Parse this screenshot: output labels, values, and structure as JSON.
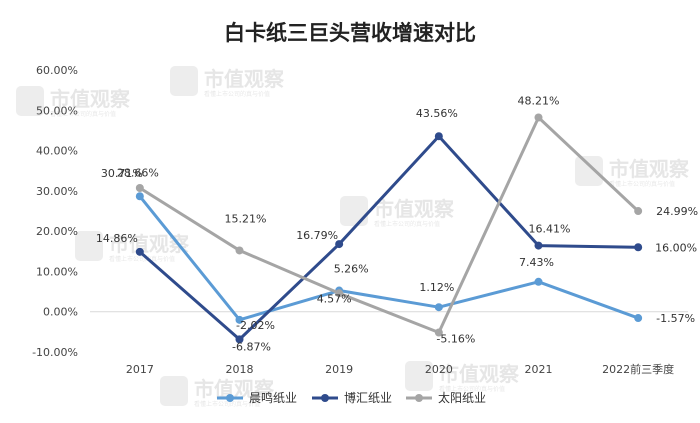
{
  "watermark": {
    "text": "市值观察",
    "subtext": "看懂上市公司的真与价值"
  },
  "chart_data": {
    "type": "line",
    "title": "白卡纸三巨头营收增速对比",
    "xlabel": "",
    "ylabel": "",
    "categories": [
      "2017",
      "2018",
      "2019",
      "2020",
      "2021",
      "2022前三季度"
    ],
    "ylim": [
      -10,
      60
    ],
    "yticks": [
      -10,
      0,
      10,
      20,
      30,
      40,
      50,
      60
    ],
    "ytick_labels": [
      "-10.00%",
      "0.00%",
      "10.00%",
      "20.00%",
      "30.00%",
      "40.00%",
      "50.00%",
      "60.00%"
    ],
    "grid": false,
    "legend_position": "bottom",
    "series": [
      {
        "name": "晨鸣纸业",
        "color": "#5b9bd5",
        "values": [
          28.66,
          -2.02,
          5.26,
          1.12,
          7.43,
          -1.57
        ],
        "labels": [
          "28.66%",
          "-2.02%",
          "5.26%",
          "1.12%",
          "7.43%",
          "-1.57%"
        ]
      },
      {
        "name": "博汇纸业",
        "color": "#2f4b8c",
        "values": [
          14.86,
          -6.87,
          16.79,
          43.56,
          16.41,
          16.0
        ],
        "labels": [
          "14.86%",
          "-6.87%",
          "16.79%",
          "43.56%",
          "16.41%",
          "16.00%"
        ]
      },
      {
        "name": "太阳纸业",
        "color": "#a5a5a5",
        "values": [
          30.71,
          15.21,
          4.57,
          -5.16,
          48.21,
          24.99
        ],
        "labels": [
          "30.71%",
          "15.21%",
          "4.57%",
          "-5.16%",
          "48.21%",
          "24.99%"
        ]
      }
    ]
  }
}
